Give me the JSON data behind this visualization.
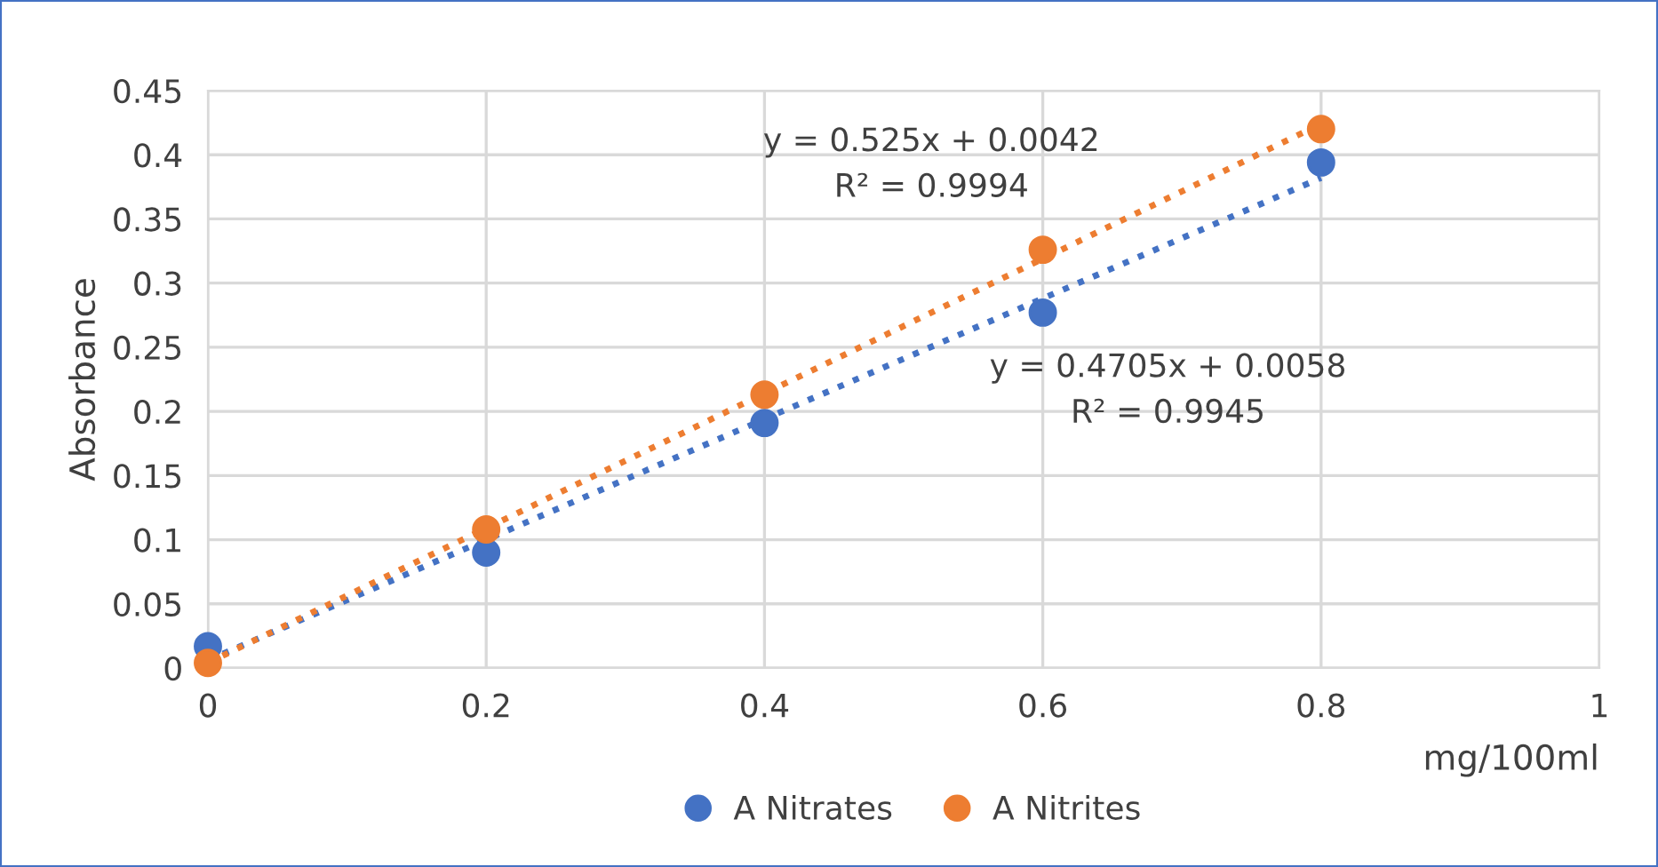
{
  "chart_data": {
    "type": "scatter",
    "xlabel": "mg/100ml",
    "ylabel": "Absorbance",
    "x": [
      0,
      0.2,
      0.4,
      0.6,
      0.8
    ],
    "series": [
      {
        "name": "A Nitrates",
        "color": "#4472c4",
        "values": [
          0.017,
          0.09,
          0.191,
          0.277,
          0.394
        ]
      },
      {
        "name": "A Nitrites",
        "color": "#ed7d31",
        "values": [
          0.004,
          0.108,
          0.213,
          0.326,
          0.42
        ]
      },
      {
        "type": "line",
        "color": "#4472c4",
        "values": [
          0.006,
          0.1,
          0.194,
          0.288,
          0.382
        ],
        "line_style": "dotted",
        "marker": "none"
      },
      {
        "type": "line",
        "color": "#ed7d31",
        "values": [
          0.004,
          0.109,
          0.214,
          0.319,
          0.424
        ],
        "line_style": "dotted",
        "marker": "none"
      }
    ],
    "annotations": [
      "y = 0.525x + 0.0042\nR² = 0.9994",
      "y = 0.4705x + 0.0058\nR² = 0.9945"
    ],
    "xlim": [
      0,
      1
    ],
    "xticks": [
      0,
      0.2,
      0.4,
      0.6,
      0.8,
      1
    ],
    "ylim": [
      0,
      0.45
    ],
    "yticks": [
      0,
      0.05,
      0.1,
      0.15,
      0.2,
      0.25,
      0.3,
      0.35,
      0.4,
      0.45
    ],
    "grid": true,
    "legend": "bottom",
    "marker": "circle"
  }
}
